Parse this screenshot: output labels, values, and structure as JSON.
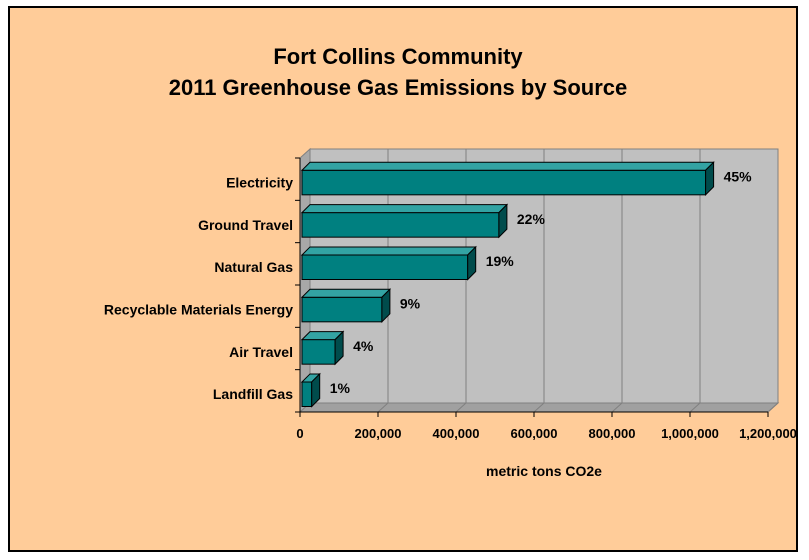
{
  "chart_data": {
    "type": "bar",
    "orientation": "horizontal",
    "style": "3d",
    "title": "Fort Collins Community\n2011 Greenhouse Gas Emissions by Source",
    "xlabel": "metric tons CO2e",
    "ylabel": "",
    "xlim": [
      0,
      1200000
    ],
    "x_ticks": [
      0,
      200000,
      400000,
      600000,
      800000,
      1000000,
      1200000
    ],
    "x_tick_labels": [
      "0",
      "200,000",
      "400,000",
      "600,000",
      "800,000",
      "1,000,000",
      "1,200,000"
    ],
    "categories": [
      "Electricity",
      "Ground Travel",
      "Natural Gas",
      "Recyclable Materials Energy",
      "Air Travel",
      "Landfill Gas"
    ],
    "values": [
      1040000,
      510000,
      430000,
      210000,
      90000,
      30000
    ],
    "data_labels": [
      "45%",
      "22%",
      "19%",
      "9%",
      "4%",
      "1%"
    ],
    "grid": true,
    "legend": "none",
    "colors": {
      "background": "#FFCC99",
      "plot_area": "#C0C0C0",
      "bar_front": "#008080",
      "bar_top": "#33A3A3",
      "bar_side": "#004C4C"
    }
  }
}
